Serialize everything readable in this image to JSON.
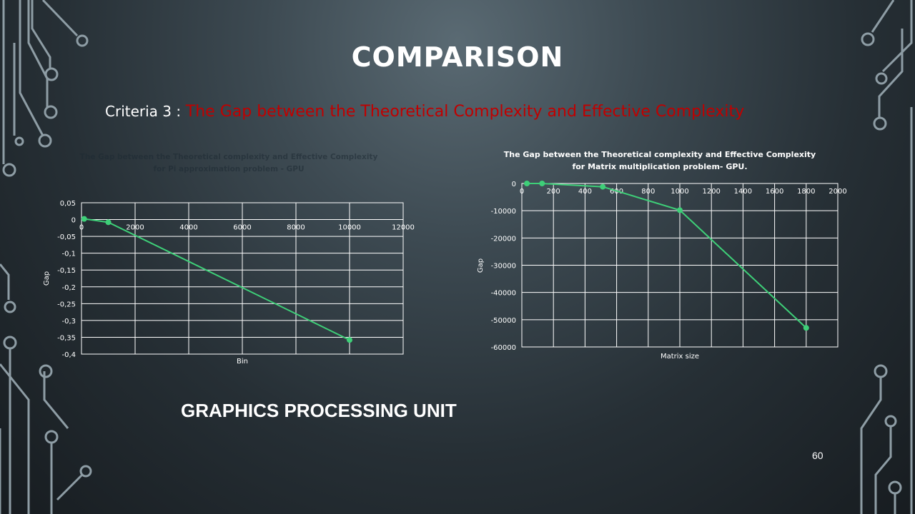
{
  "slide": {
    "title": "COMPARISON",
    "criteria_label": "Criteria 3 :",
    "criteria_text": "The Gap between the Theoretical Complexity and Effective Complexity",
    "footer_text": "GRAPHICS PROCESSING UNIT",
    "page_number": "60"
  },
  "colors": {
    "accent_red": "#c00000",
    "series_green": "#3ecf78",
    "circuit": "#8e9da5"
  },
  "chart_data": [
    {
      "type": "line",
      "title_lines": [
        "The Gap between the Theoretical complexity and Effective Complexity",
        "for Pi approximation problem - GPU"
      ],
      "xlabel": "Bin",
      "ylabel": "Gap",
      "xlim": [
        0,
        12000
      ],
      "ylim": [
        -0.4,
        0.05
      ],
      "xticks": [
        0,
        2000,
        4000,
        6000,
        8000,
        10000,
        12000
      ],
      "xtick_labels": [
        "0",
        "2000",
        "4000",
        "6000",
        "8000",
        "10000",
        "12000"
      ],
      "yticks": [
        0.05,
        0,
        -0.05,
        -0.1,
        -0.15,
        -0.2,
        -0.25,
        -0.3,
        -0.35,
        -0.4
      ],
      "ytick_labels": [
        "0,05",
        "0",
        "-0,05",
        "-0,1",
        "-0,15",
        "-0,2",
        "-0,25",
        "-0,3",
        "-0,35",
        "-0,4"
      ],
      "grid": true,
      "series": [
        {
          "x": [
            100,
            1000,
            10000
          ],
          "y": [
            0.002,
            -0.008,
            -0.358
          ]
        }
      ]
    },
    {
      "type": "line",
      "title_lines": [
        "The Gap between the Theoretical complexity and Effective Complexity",
        "for Matrix multiplication problem- GPU."
      ],
      "xlabel": "Matrix size",
      "ylabel": "Gap",
      "xlim": [
        0,
        2000
      ],
      "ylim": [
        -60000,
        0
      ],
      "xticks": [
        0,
        200,
        400,
        600,
        800,
        1000,
        1200,
        1400,
        1600,
        1800,
        2000
      ],
      "xtick_labels": [
        "0",
        "200",
        "400",
        "600",
        "800",
        "1000",
        "1200",
        "1400",
        "1600",
        "1800",
        "2000"
      ],
      "yticks": [
        0,
        -10000,
        -20000,
        -30000,
        -40000,
        -50000,
        -60000
      ],
      "ytick_labels": [
        "0",
        "-10000",
        "-20000",
        "-30000",
        "-40000",
        "-50000",
        "-60000"
      ],
      "grid": true,
      "series": [
        {
          "x": [
            32,
            128,
            512,
            1000,
            1800
          ],
          "y": [
            0,
            0,
            -1200,
            -9800,
            -53000
          ]
        }
      ]
    }
  ]
}
